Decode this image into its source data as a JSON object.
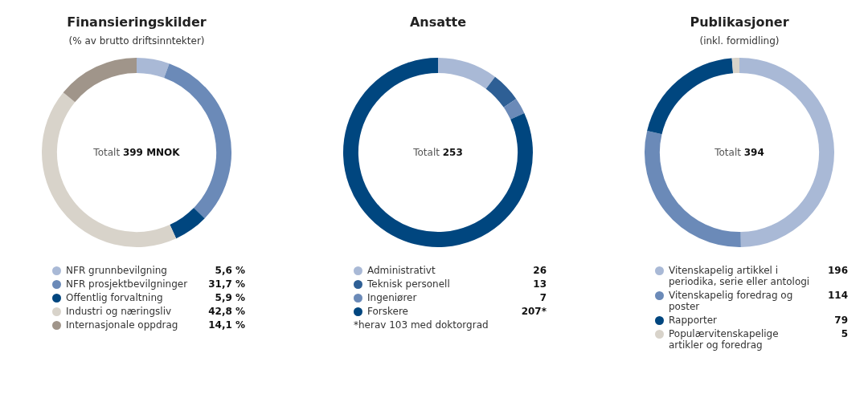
{
  "chart_data": [
    {
      "type": "donut",
      "title": "Finansieringskilder",
      "subtitle": "(% av brutto driftsinntekter)",
      "legend": "bottom",
      "categories": [
        "NFR grunnbevilgning",
        "NFR prosjektbevilgninger",
        "Offentlig forvaltning",
        "Industri og næringsliv",
        "Internasjonale oppdrag"
      ],
      "values": [
        5.6,
        31.7,
        5.9,
        42.8,
        14.1
      ],
      "value_labels": [
        "5,6 %",
        "31,7 %",
        "5,9 %",
        "42,8 %",
        "14,1 %"
      ],
      "colors": [
        "#a9b9d6",
        "#6b8ab8",
        "#00467f",
        "#d8d3ca",
        "#a0958a"
      ],
      "annotations": [
        "Totalt 399 MNOK"
      ]
    },
    {
      "type": "donut",
      "title": "Ansatte",
      "legend": "bottom",
      "categories": [
        "Administrativt",
        "Teknisk personell",
        "Ingeniører",
        "Forskere"
      ],
      "values": [
        26,
        13,
        7,
        207
      ],
      "value_labels": [
        "26",
        "13",
        "7",
        "207*"
      ],
      "colors": [
        "#a9b9d6",
        "#2e5f95",
        "#6b8ab8",
        "#00467f"
      ],
      "annotations": [
        "Totalt 253",
        "*herav 103 med doktorgrad"
      ]
    },
    {
      "type": "donut",
      "title": "Publikasjoner",
      "subtitle": "(inkl. formidling)",
      "legend": "bottom",
      "categories": [
        "Vitenskapelig artikkel i periodika, serie eller antologi",
        "Vitenskapelig foredrag og poster",
        "Rapporter",
        "Populærvitenskapelige artikler og foredrag"
      ],
      "values": [
        196,
        114,
        79,
        5
      ],
      "value_labels": [
        "196",
        "114",
        "79",
        "5"
      ],
      "colors": [
        "#a9b9d6",
        "#6b8ab8",
        "#00467f",
        "#d8d3ca"
      ],
      "annotations": [
        "Totalt 394"
      ]
    }
  ]
}
